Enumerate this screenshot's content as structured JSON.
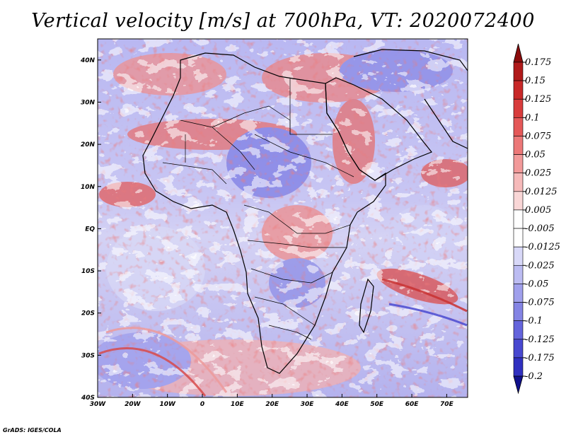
{
  "title": "Vertical velocity [m/s] at 700hPa, VT: 2020072400",
  "credit": "GrADS: IGES/COLA",
  "map": {
    "lon_range": [
      -30,
      76
    ],
    "lat_range": [
      -40,
      45
    ],
    "x_ticks": [
      {
        "value": -30,
        "label": "30W"
      },
      {
        "value": -20,
        "label": "20W"
      },
      {
        "value": -10,
        "label": "10W"
      },
      {
        "value": 0,
        "label": "0"
      },
      {
        "value": 10,
        "label": "10E"
      },
      {
        "value": 20,
        "label": "20E"
      },
      {
        "value": 30,
        "label": "30E"
      },
      {
        "value": 40,
        "label": "40E"
      },
      {
        "value": 50,
        "label": "50E"
      },
      {
        "value": 60,
        "label": "60E"
      },
      {
        "value": 70,
        "label": "70E"
      }
    ],
    "y_ticks": [
      {
        "value": 40,
        "label": "40N"
      },
      {
        "value": 30,
        "label": "30N"
      },
      {
        "value": 20,
        "label": "20N"
      },
      {
        "value": 10,
        "label": "10N"
      },
      {
        "value": 0,
        "label": "EQ"
      },
      {
        "value": -10,
        "label": "10S"
      },
      {
        "value": -20,
        "label": "20S"
      },
      {
        "value": -30,
        "label": "30S"
      },
      {
        "value": -40,
        "label": "40S"
      }
    ]
  },
  "colorbar": {
    "levels": [
      {
        "label": "0.175",
        "color": "#b01a1a"
      },
      {
        "label": "0.15",
        "color": "#c82828"
      },
      {
        "label": "0.125",
        "color": "#d83c3c"
      },
      {
        "label": "0.1",
        "color": "#e45858"
      },
      {
        "label": "0.075",
        "color": "#ec7878"
      },
      {
        "label": "0.05",
        "color": "#f29a9a"
      },
      {
        "label": "0.025",
        "color": "#f6baba"
      },
      {
        "label": "0.0125",
        "color": "#f9d6d6"
      },
      {
        "label": "0.005",
        "color": "#ffffff"
      },
      {
        "label": "-0.005",
        "color": "#ffffff"
      },
      {
        "label": "-0.0125",
        "color": "#d8d8f8"
      },
      {
        "label": "-0.025",
        "color": "#bcbcf2"
      },
      {
        "label": "-0.05",
        "color": "#a0a0ec"
      },
      {
        "label": "-0.075",
        "color": "#8484e4"
      },
      {
        "label": "-0.1",
        "color": "#6464dc"
      },
      {
        "label": "-0.125",
        "color": "#4848d0"
      },
      {
        "label": "-0.175",
        "color": "#3030c0"
      },
      {
        "label": "-0.2",
        "color": "#1c1ca8"
      }
    ],
    "top_arrow_color": "#8c0c0c",
    "bottom_arrow_color": "#10108c"
  }
}
